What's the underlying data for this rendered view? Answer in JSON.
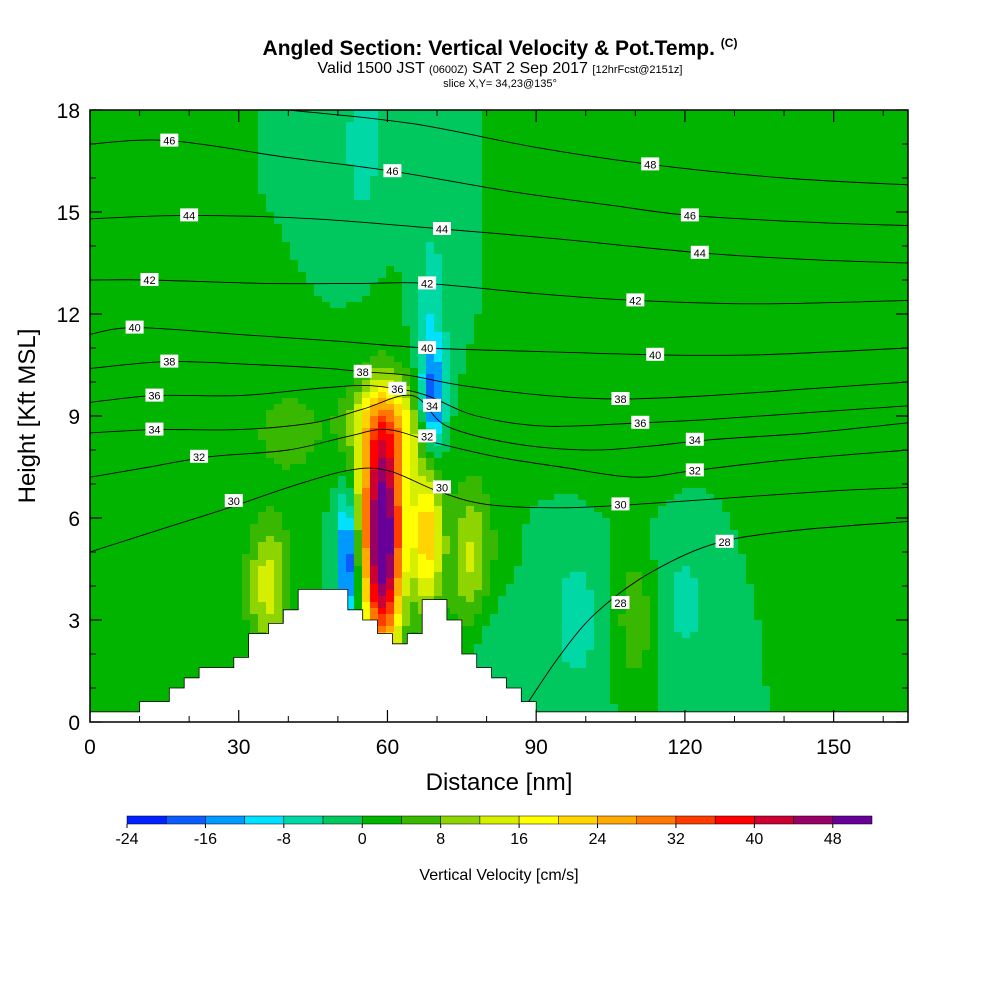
{
  "title": {
    "main": "Angled Section: Vertical Velocity & Pot.Temp.",
    "units_tag": "(C)",
    "valid_prefix": "Valid 1500 JST",
    "zulu": "(0600Z)",
    "valid_date": "SAT 2 Sep 2017",
    "forecast": "[12hrFcst@2151z]",
    "slice": "slice X,Y= 34,23@135°"
  },
  "chart_data": {
    "type": "heatmap",
    "overlay": "contour",
    "xlabel": "Distance [nm]",
    "ylabel": "Height [Kft MSL]",
    "xlim": [
      0,
      165
    ],
    "ylim": [
      0,
      18
    ],
    "xticks": [
      0,
      30,
      60,
      90,
      120,
      150
    ],
    "yticks": [
      0,
      3,
      6,
      9,
      12,
      15,
      18
    ],
    "colorbar": {
      "label": "Vertical Velocity [cm/s]",
      "tick_labels": [
        "-24",
        "-16",
        "-8",
        "0",
        "8",
        "16",
        "24",
        "32",
        "40",
        "48"
      ],
      "tick_values": [
        -24,
        -16,
        -8,
        0,
        8,
        16,
        24,
        32,
        40,
        48
      ],
      "bins": [
        -24,
        -20,
        -16,
        -12,
        -8,
        -4,
        0,
        4,
        8,
        12,
        16,
        20,
        24,
        28,
        32,
        36,
        40,
        44,
        48,
        52
      ],
      "colors": [
        "#0022ff",
        "#0b5cff",
        "#0099ff",
        "#00e0ff",
        "#00d9a6",
        "#00c85e",
        "#00b400",
        "#38b800",
        "#8ed400",
        "#d6ee00",
        "#ffff00",
        "#ffd400",
        "#ffaa00",
        "#ff7700",
        "#ff3c00",
        "#ff0000",
        "#cc0033",
        "#990066",
        "#660099"
      ]
    },
    "background_value": 0,
    "velocity_features": [
      {
        "name": "main updraft",
        "x": 59,
        "y": 6.5,
        "peak": 44,
        "sx": 3.2,
        "sy": 1.9
      },
      {
        "name": "updraft base",
        "x": 59,
        "y": 3.8,
        "peak": 30,
        "sx": 2.6,
        "sy": 1.6
      },
      {
        "name": "secondary updraft",
        "x": 68,
        "y": 5.5,
        "peak": 22,
        "sx": 2.2,
        "sy": 1.6
      },
      {
        "name": "updraft top",
        "x": 60,
        "y": 8.8,
        "peak": 14,
        "sx": 6,
        "sy": 0.9
      },
      {
        "name": "windward updraft",
        "x": 36,
        "y": 4.0,
        "peak": 14,
        "sx": 3.2,
        "sy": 1.4
      },
      {
        "name": "leeward updraft",
        "x": 77,
        "y": 4.8,
        "peak": 13,
        "sx": 3.2,
        "sy": 1.6
      },
      {
        "name": "windward weak lift",
        "x": 40,
        "y": 8.5,
        "peak": 7,
        "sx": 5,
        "sy": 0.9
      },
      {
        "name": "high-level lift",
        "x": 108,
        "y": 8.5,
        "peak": 3,
        "sx": 9,
        "sy": 1.2
      },
      {
        "name": "upper broad lift",
        "x": 145,
        "y": 12.0,
        "peak": 3,
        "sx": 14,
        "sy": 2.6
      },
      {
        "name": "low-level weak updraft",
        "x": 110,
        "y": 3.0,
        "peak": 8,
        "sx": 2.5,
        "sy": 1.3
      },
      {
        "name": "main downdraft",
        "x": 52,
        "y": 4.8,
        "peak": -22,
        "sx": 1.5,
        "sy": 1.3
      },
      {
        "name": "downdraft aloft",
        "x": 69,
        "y": 9.3,
        "peak": -18,
        "sx": 1.8,
        "sy": 1.0
      },
      {
        "name": "descending plume",
        "x": 69,
        "y": 11.5,
        "peak": -8,
        "sx": 2.2,
        "sy": 2.2
      },
      {
        "name": "descending plume top",
        "x": 55,
        "y": 17.0,
        "peak": -7,
        "sx": 2.6,
        "sy": 1.6
      },
      {
        "name": "lee wave downdraft",
        "x": 98,
        "y": 3.0,
        "peak": -6,
        "sx": 4,
        "sy": 1.6
      },
      {
        "name": "far lee downdraft",
        "x": 120,
        "y": 3.5,
        "peak": -5,
        "sx": 4,
        "sy": 1.6
      },
      {
        "name": "low-level downdraft",
        "x": 80,
        "y": 2.5,
        "peak": -4,
        "sx": 3,
        "sy": 1.3
      }
    ],
    "isentropes": [
      {
        "value": 28,
        "labels": [
          [
            107,
            3.5
          ],
          [
            128,
            5.3
          ]
        ],
        "points": [
          [
            88,
            0.5
          ],
          [
            95,
            2.0
          ],
          [
            102,
            3.2
          ],
          [
            112,
            4.3
          ],
          [
            125,
            5.2
          ],
          [
            140,
            5.6
          ],
          [
            165,
            5.9
          ]
        ]
      },
      {
        "value": 30,
        "labels": [
          [
            29,
            6.5
          ],
          [
            71,
            6.9
          ],
          [
            107,
            6.4
          ]
        ],
        "points": [
          [
            0,
            5.0
          ],
          [
            15,
            5.7
          ],
          [
            28,
            6.3
          ],
          [
            40,
            6.9
          ],
          [
            52,
            7.4
          ],
          [
            60,
            7.4
          ],
          [
            70,
            6.8
          ],
          [
            80,
            6.4
          ],
          [
            95,
            6.3
          ],
          [
            110,
            6.4
          ],
          [
            130,
            6.6
          ],
          [
            150,
            6.8
          ],
          [
            165,
            6.9
          ]
        ]
      },
      {
        "value": 32,
        "labels": [
          [
            22,
            7.8
          ],
          [
            68,
            8.4
          ],
          [
            122,
            7.4
          ]
        ],
        "points": [
          [
            0,
            7.2
          ],
          [
            12,
            7.5
          ],
          [
            24,
            7.8
          ],
          [
            40,
            8.0
          ],
          [
            52,
            8.4
          ],
          [
            60,
            8.6
          ],
          [
            70,
            8.2
          ],
          [
            82,
            7.8
          ],
          [
            95,
            7.5
          ],
          [
            110,
            7.2
          ],
          [
            122,
            7.4
          ],
          [
            140,
            7.7
          ],
          [
            165,
            8.0
          ]
        ]
      },
      {
        "value": 34,
        "labels": [
          [
            13,
            8.6
          ],
          [
            69,
            9.3
          ],
          [
            122,
            8.3
          ]
        ],
        "points": [
          [
            0,
            8.5
          ],
          [
            13,
            8.6
          ],
          [
            30,
            8.6
          ],
          [
            45,
            8.8
          ],
          [
            55,
            9.2
          ],
          [
            65,
            9.6
          ],
          [
            72,
            8.7
          ],
          [
            85,
            8.2
          ],
          [
            100,
            8.0
          ],
          [
            112,
            8.1
          ],
          [
            125,
            8.3
          ],
          [
            145,
            8.5
          ],
          [
            165,
            8.8
          ]
        ]
      },
      {
        "value": 36,
        "labels": [
          [
            13,
            9.6
          ],
          [
            62,
            9.8
          ],
          [
            111,
            8.8
          ]
        ],
        "points": [
          [
            0,
            9.4
          ],
          [
            13,
            9.6
          ],
          [
            30,
            9.6
          ],
          [
            45,
            9.8
          ],
          [
            55,
            9.9
          ],
          [
            62,
            9.8
          ],
          [
            68,
            9.6
          ],
          [
            78,
            9.0
          ],
          [
            92,
            8.7
          ],
          [
            111,
            8.8
          ],
          [
            125,
            8.9
          ],
          [
            145,
            9.1
          ],
          [
            165,
            9.3
          ]
        ]
      },
      {
        "value": 38,
        "labels": [
          [
            16,
            10.6
          ],
          [
            55,
            10.3
          ],
          [
            107,
            9.5
          ]
        ],
        "points": [
          [
            0,
            10.4
          ],
          [
            16,
            10.6
          ],
          [
            35,
            10.5
          ],
          [
            48,
            10.4
          ],
          [
            55,
            10.3
          ],
          [
            64,
            10.2
          ],
          [
            75,
            9.9
          ],
          [
            92,
            9.6
          ],
          [
            107,
            9.5
          ],
          [
            125,
            9.6
          ],
          [
            145,
            9.8
          ],
          [
            165,
            10.0
          ]
        ]
      },
      {
        "value": 40,
        "labels": [
          [
            9,
            11.6
          ],
          [
            68,
            11.0
          ],
          [
            114,
            10.8
          ]
        ],
        "points": [
          [
            0,
            11.4
          ],
          [
            9,
            11.6
          ],
          [
            30,
            11.4
          ],
          [
            50,
            11.2
          ],
          [
            68,
            11.0
          ],
          [
            90,
            10.9
          ],
          [
            114,
            10.8
          ],
          [
            135,
            10.8
          ],
          [
            165,
            11.0
          ]
        ]
      },
      {
        "value": 42,
        "labels": [
          [
            12,
            13.0
          ],
          [
            68,
            12.9
          ],
          [
            110,
            12.4
          ]
        ],
        "points": [
          [
            0,
            13.0
          ],
          [
            12,
            13.0
          ],
          [
            35,
            12.9
          ],
          [
            55,
            12.9
          ],
          [
            68,
            12.9
          ],
          [
            90,
            12.6
          ],
          [
            110,
            12.4
          ],
          [
            135,
            12.3
          ],
          [
            165,
            12.4
          ]
        ]
      },
      {
        "value": 44,
        "labels": [
          [
            20,
            14.9
          ],
          [
            71,
            14.5
          ],
          [
            123,
            13.8
          ]
        ],
        "points": [
          [
            0,
            14.8
          ],
          [
            20,
            14.9
          ],
          [
            45,
            14.8
          ],
          [
            71,
            14.5
          ],
          [
            95,
            14.2
          ],
          [
            123,
            13.8
          ],
          [
            145,
            13.6
          ],
          [
            165,
            13.5
          ]
        ]
      },
      {
        "value": 46,
        "labels": [
          [
            16,
            17.1
          ],
          [
            61,
            16.2
          ],
          [
            121,
            14.9
          ]
        ],
        "points": [
          [
            0,
            17.0
          ],
          [
            16,
            17.1
          ],
          [
            40,
            16.6
          ],
          [
            61,
            16.2
          ],
          [
            85,
            15.6
          ],
          [
            105,
            15.2
          ],
          [
            121,
            14.9
          ],
          [
            145,
            14.7
          ],
          [
            165,
            14.6
          ]
        ]
      },
      {
        "value": 48,
        "labels": [
          [
            113,
            16.4
          ]
        ],
        "points": [
          [
            40,
            18.0
          ],
          [
            65,
            17.6
          ],
          [
            90,
            16.9
          ],
          [
            113,
            16.4
          ],
          [
            140,
            16.0
          ],
          [
            165,
            15.8
          ]
        ]
      }
    ],
    "terrain": [
      [
        0,
        0.3
      ],
      [
        10,
        0.3
      ],
      [
        10,
        0.6
      ],
      [
        16,
        0.6
      ],
      [
        16,
        1.0
      ],
      [
        19,
        1.0
      ],
      [
        19,
        1.3
      ],
      [
        22,
        1.3
      ],
      [
        22,
        1.6
      ],
      [
        29,
        1.6
      ],
      [
        29,
        1.9
      ],
      [
        32,
        1.9
      ],
      [
        32,
        2.6
      ],
      [
        36,
        2.6
      ],
      [
        36,
        2.9
      ],
      [
        39,
        2.9
      ],
      [
        39,
        3.3
      ],
      [
        42,
        3.3
      ],
      [
        42,
        3.9
      ],
      [
        52,
        3.9
      ],
      [
        52,
        3.3
      ],
      [
        55,
        3.3
      ],
      [
        55,
        3.0
      ],
      [
        58,
        3.0
      ],
      [
        58,
        2.6
      ],
      [
        61,
        2.6
      ],
      [
        61,
        2.3
      ],
      [
        64,
        2.3
      ],
      [
        64,
        2.6
      ],
      [
        67,
        2.6
      ],
      [
        67,
        3.6
      ],
      [
        72,
        3.6
      ],
      [
        72,
        3.0
      ],
      [
        75,
        3.0
      ],
      [
        75,
        2.0
      ],
      [
        78,
        2.0
      ],
      [
        78,
        1.6
      ],
      [
        81,
        1.6
      ],
      [
        81,
        1.3
      ],
      [
        84,
        1.3
      ],
      [
        84,
        1.0
      ],
      [
        87,
        1.0
      ],
      [
        87,
        0.6
      ],
      [
        90,
        0.6
      ],
      [
        90,
        0.3
      ],
      [
        165,
        0.3
      ]
    ]
  }
}
